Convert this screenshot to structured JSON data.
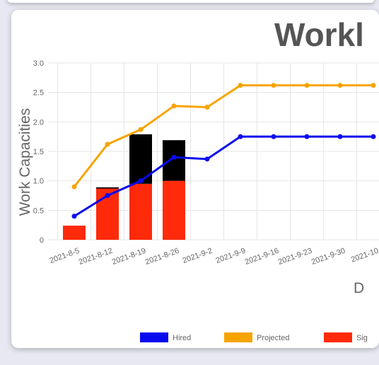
{
  "chart_data": {
    "type": "bar",
    "title": "Workl",
    "ylabel": "Work Capacities",
    "xlabel": "D",
    "ylim": [
      0,
      3.0
    ],
    "y_ticks": [
      "0",
      "0.5",
      "1.0",
      "1.5",
      "2.0",
      "2.5",
      "3.0"
    ],
    "categories": [
      "2021-8-5",
      "2021-8-12",
      "2021-8-19",
      "2021-8-26",
      "2021-9-2",
      "2021-9-9",
      "2021-9-16",
      "2021-9-23",
      "2021-9-30",
      "2021-10"
    ],
    "grid": true,
    "legend_position": "bottom",
    "series": [
      {
        "name": "Hired",
        "type": "line",
        "color": "#0a0aee",
        "values": [
          0.4,
          0.75,
          1.0,
          1.4,
          1.37,
          1.75,
          1.75,
          1.75,
          1.75,
          1.75
        ]
      },
      {
        "name": "Projected",
        "type": "line",
        "color": "#f7a400",
        "values": [
          0.9,
          1.62,
          1.87,
          2.27,
          2.25,
          2.62,
          2.62,
          2.62,
          2.62,
          2.62
        ]
      },
      {
        "name": "Sig",
        "type": "bar",
        "color": "#ff2a0a",
        "values": [
          0.24,
          0.87,
          0.95,
          1.0,
          null,
          null,
          null,
          null,
          null,
          null
        ]
      },
      {
        "name": "",
        "type": "bar",
        "color": "#000000",
        "values": [
          null,
          0.02,
          0.84,
          0.69,
          null,
          null,
          null,
          null,
          null,
          null
        ]
      }
    ]
  }
}
